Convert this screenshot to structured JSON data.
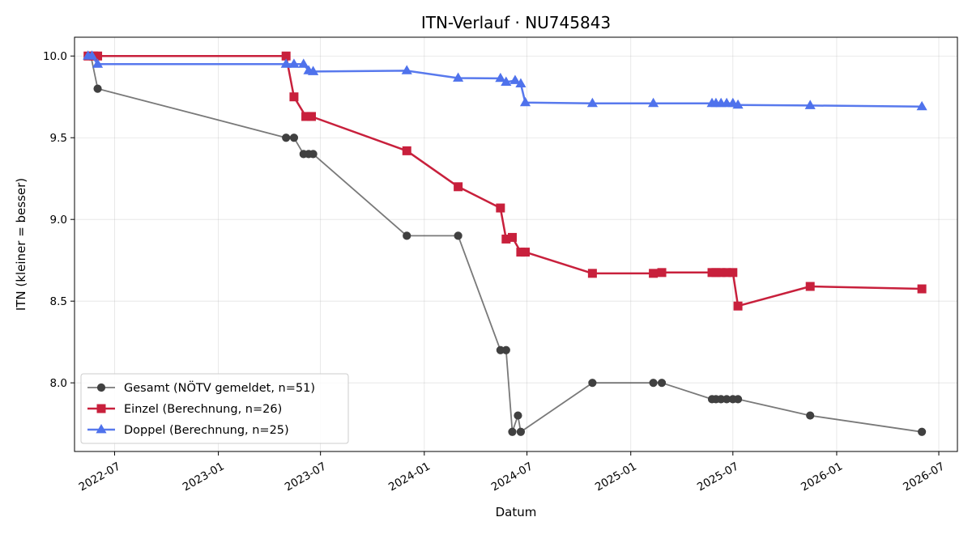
{
  "chart_data": {
    "type": "line",
    "title": "ITN-Verlauf · NU745843",
    "xlabel": "Datum",
    "ylabel": "ITN  (kleiner = besser)",
    "x_axis": "date",
    "xlim": [
      "2022-04-21",
      "2026-08-03"
    ],
    "ylim": [
      7.58,
      10.115
    ],
    "x_ticks": [
      "2022-07",
      "2023-01",
      "2023-07",
      "2024-01",
      "2024-07",
      "2025-01",
      "2025-07",
      "2026-01",
      "2026-07"
    ],
    "y_ticks": [
      "8.0",
      "8.5",
      "9.0",
      "9.5",
      "10.0"
    ],
    "grid": true,
    "legend_position": "lower-left",
    "series": [
      {
        "name": "Gesamt (NÖTV gemeldet, n=51)",
        "color": "#404040",
        "marker": "circle",
        "points": [
          [
            "2022-05-15",
            10.0
          ],
          [
            "2022-05-20",
            10.0
          ],
          [
            "2022-06-01",
            9.8
          ],
          [
            "2023-05-01",
            9.5
          ],
          [
            "2023-05-15",
            9.5
          ],
          [
            "2023-06-01",
            9.4
          ],
          [
            "2023-06-10",
            9.4
          ],
          [
            "2023-06-18",
            9.4
          ],
          [
            "2023-12-01",
            8.9
          ],
          [
            "2024-03-01",
            8.9
          ],
          [
            "2024-05-15",
            8.2
          ],
          [
            "2024-05-25",
            8.2
          ],
          [
            "2024-06-05",
            7.7
          ],
          [
            "2024-06-15",
            7.8
          ],
          [
            "2024-06-20",
            7.7
          ],
          [
            "2024-10-25",
            8.0
          ],
          [
            "2025-02-10",
            8.0
          ],
          [
            "2025-02-25",
            8.0
          ],
          [
            "2025-05-25",
            7.9
          ],
          [
            "2025-06-01",
            7.9
          ],
          [
            "2025-06-10",
            7.9
          ],
          [
            "2025-06-20",
            7.9
          ],
          [
            "2025-07-01",
            7.9
          ],
          [
            "2025-07-10",
            7.9
          ],
          [
            "2025-11-15",
            7.8
          ],
          [
            "2026-06-01",
            7.7
          ]
        ]
      },
      {
        "name": "Einzel (Berechnung, n=26)",
        "color": "#c8203c",
        "marker": "square",
        "points": [
          [
            "2022-05-15",
            10.0
          ],
          [
            "2022-05-25",
            10.0
          ],
          [
            "2022-06-01",
            10.0
          ],
          [
            "2023-05-01",
            10.0
          ],
          [
            "2023-05-15",
            9.75
          ],
          [
            "2023-06-05",
            9.63
          ],
          [
            "2023-06-15",
            9.63
          ],
          [
            "2023-12-01",
            9.42
          ],
          [
            "2024-03-01",
            9.2
          ],
          [
            "2024-05-15",
            9.07
          ],
          [
            "2024-05-25",
            8.88
          ],
          [
            "2024-06-05",
            8.89
          ],
          [
            "2024-06-20",
            8.8
          ],
          [
            "2024-06-28",
            8.8
          ],
          [
            "2024-10-25",
            8.67
          ],
          [
            "2025-02-10",
            8.67
          ],
          [
            "2025-02-25",
            8.675
          ],
          [
            "2025-05-25",
            8.675
          ],
          [
            "2025-06-01",
            8.675
          ],
          [
            "2025-06-10",
            8.675
          ],
          [
            "2025-06-20",
            8.675
          ],
          [
            "2025-07-01",
            8.675
          ],
          [
            "2025-07-10",
            8.47
          ],
          [
            "2025-11-15",
            8.59
          ],
          [
            "2026-06-01",
            8.575
          ]
        ]
      },
      {
        "name": "Doppel (Berechnung, n=25)",
        "color": "#4f72ec",
        "marker": "triangle",
        "points": [
          [
            "2022-05-15",
            10.0
          ],
          [
            "2022-05-22",
            10.0
          ],
          [
            "2022-06-01",
            9.95
          ],
          [
            "2023-05-01",
            9.95
          ],
          [
            "2023-05-15",
            9.95
          ],
          [
            "2023-06-01",
            9.95
          ],
          [
            "2023-06-10",
            9.91
          ],
          [
            "2023-06-18",
            9.905
          ],
          [
            "2023-12-01",
            9.91
          ],
          [
            "2024-03-01",
            9.865
          ],
          [
            "2024-05-15",
            9.863
          ],
          [
            "2024-05-25",
            9.84
          ],
          [
            "2024-06-10",
            9.85
          ],
          [
            "2024-06-20",
            9.83
          ],
          [
            "2024-06-28",
            9.715
          ],
          [
            "2024-10-25",
            9.71
          ],
          [
            "2025-02-10",
            9.71
          ],
          [
            "2025-05-25",
            9.71
          ],
          [
            "2025-06-01",
            9.71
          ],
          [
            "2025-06-10",
            9.71
          ],
          [
            "2025-06-20",
            9.71
          ],
          [
            "2025-07-01",
            9.71
          ],
          [
            "2025-07-10",
            9.7
          ],
          [
            "2025-11-15",
            9.697
          ],
          [
            "2026-06-01",
            9.69
          ]
        ]
      }
    ]
  }
}
